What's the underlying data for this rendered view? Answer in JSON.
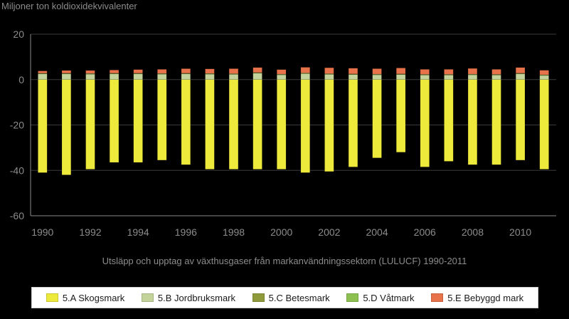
{
  "chart_data": {
    "type": "bar",
    "stacked": true,
    "ylabel": "Miljoner ton koldioxidekvivalenter",
    "caption": "Utsläpp och upptag av växthusgaser från markanvändningssektorn (LULUCF) 1990-2011",
    "ylim": [
      -60,
      20
    ],
    "yticks": [
      20,
      0,
      -20,
      -40,
      -60
    ],
    "grid": true,
    "legend_position": "bottom",
    "categories": [
      "1990",
      "1991",
      "1992",
      "1993",
      "1994",
      "1995",
      "1996",
      "1997",
      "1998",
      "1999",
      "2000",
      "2001",
      "2002",
      "2003",
      "2004",
      "2005",
      "2006",
      "2007",
      "2008",
      "2009",
      "2010",
      "2011"
    ],
    "xtick_labels": [
      "1990",
      "1992",
      "1994",
      "1996",
      "1998",
      "2000",
      "2002",
      "2004",
      "2006",
      "2008",
      "2010"
    ],
    "series": [
      {
        "name": "5.A Skogsmark",
        "color": "#eeea3c",
        "values": [
          -41,
          -42,
          -39.5,
          -36.5,
          -36.5,
          -35.5,
          -37.5,
          -39.5,
          -39.5,
          -39.5,
          -39.5,
          -41,
          -40.5,
          -38.5,
          -34.5,
          -32,
          -38.5,
          -36,
          -37.5,
          -37.5,
          -35.5,
          -39.5
        ]
      },
      {
        "name": "5.B Jordbruksmark",
        "color": "#c3d39a",
        "values": [
          2.5,
          2.5,
          2.4,
          2.5,
          2.5,
          2.4,
          2.5,
          2.4,
          2.3,
          2.8,
          2.1,
          2.6,
          2.3,
          2.2,
          2.1,
          2.2,
          2.0,
          2.0,
          2.1,
          2.0,
          2.5,
          1.8
        ]
      },
      {
        "name": "5.C Betesmark",
        "color": "#8f9a3a",
        "values": [
          0.2,
          0.2,
          0.2,
          0.2,
          0.2,
          0.2,
          0.2,
          0.2,
          0.2,
          0.2,
          0.2,
          0.2,
          0.2,
          0.2,
          0.2,
          0.2,
          0.2,
          0.2,
          0.2,
          0.2,
          0.2,
          0.2
        ]
      },
      {
        "name": "5.D Våtmark",
        "color": "#8cc152",
        "values": [
          0.1,
          0.1,
          0.1,
          0.1,
          0.1,
          0.1,
          0.1,
          0.1,
          0.1,
          0.1,
          0.1,
          0.1,
          0.1,
          0.1,
          0.1,
          0.1,
          0.1,
          0.1,
          0.1,
          0.1,
          0.1,
          0.1
        ]
      },
      {
        "name": "5.E Bebyggd mark",
        "color": "#e8734a",
        "values": [
          1.0,
          1.2,
          1.3,
          1.4,
          1.6,
          1.8,
          2.0,
          2.0,
          2.2,
          2.2,
          2.0,
          2.5,
          2.6,
          2.5,
          2.4,
          2.6,
          2.2,
          2.2,
          2.5,
          2.2,
          2.5,
          2.0
        ]
      }
    ]
  }
}
